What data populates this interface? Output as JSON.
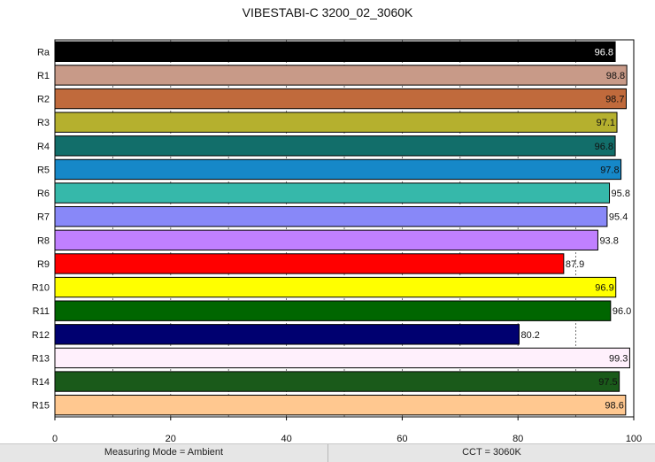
{
  "chart_data": {
    "type": "bar",
    "orientation": "horizontal",
    "title": "VIBESTABI-C 3200_02_3060K",
    "xlabel": "",
    "ylabel": "",
    "xlim": [
      0,
      100
    ],
    "x_ticks": [
      0,
      20,
      40,
      60,
      80,
      100
    ],
    "grid": "dashed vertical lines every 10",
    "categories": [
      "Ra",
      "R1",
      "R2",
      "R3",
      "R4",
      "R5",
      "R6",
      "R7",
      "R8",
      "R9",
      "R10",
      "R11",
      "R12",
      "R13",
      "R14",
      "R15"
    ],
    "values": [
      96.8,
      98.8,
      98.7,
      97.1,
      96.8,
      97.8,
      95.8,
      95.4,
      93.8,
      87.9,
      96.9,
      96.0,
      80.2,
      99.3,
      97.5,
      98.6
    ],
    "value_labels": [
      "96.8",
      "98.8",
      "98.7",
      "97.1",
      "96.8",
      "97.8",
      "95.8",
      "95.4",
      "93.8",
      "87.9",
      "96.9",
      "96.0",
      "80.2",
      "99.3",
      "97.5",
      "98.6"
    ],
    "colors": [
      "#000000",
      "#c89a88",
      "#c06a3c",
      "#b5b02e",
      "#126e6a",
      "#1688c8",
      "#36b8aa",
      "#8888f8",
      "#c080ff",
      "#ff0000",
      "#ffff00",
      "#006600",
      "#000070",
      "#fff0fc",
      "#1a5a1a",
      "#ffc890"
    ],
    "label_colors": [
      "#ffffff",
      "#111111",
      "#111111",
      "#111111",
      "#111111",
      "#111111",
      "#111111",
      "#111111",
      "#111111",
      "#111111",
      "#111111",
      "#111111",
      "#111111",
      "#111111",
      "#111111",
      "#111111"
    ],
    "label_inside": [
      true,
      true,
      true,
      true,
      true,
      true,
      false,
      false,
      false,
      false,
      true,
      false,
      false,
      true,
      true,
      true
    ]
  },
  "status": {
    "left": "Measuring Mode = Ambient",
    "right": "CCT = 3060K"
  }
}
